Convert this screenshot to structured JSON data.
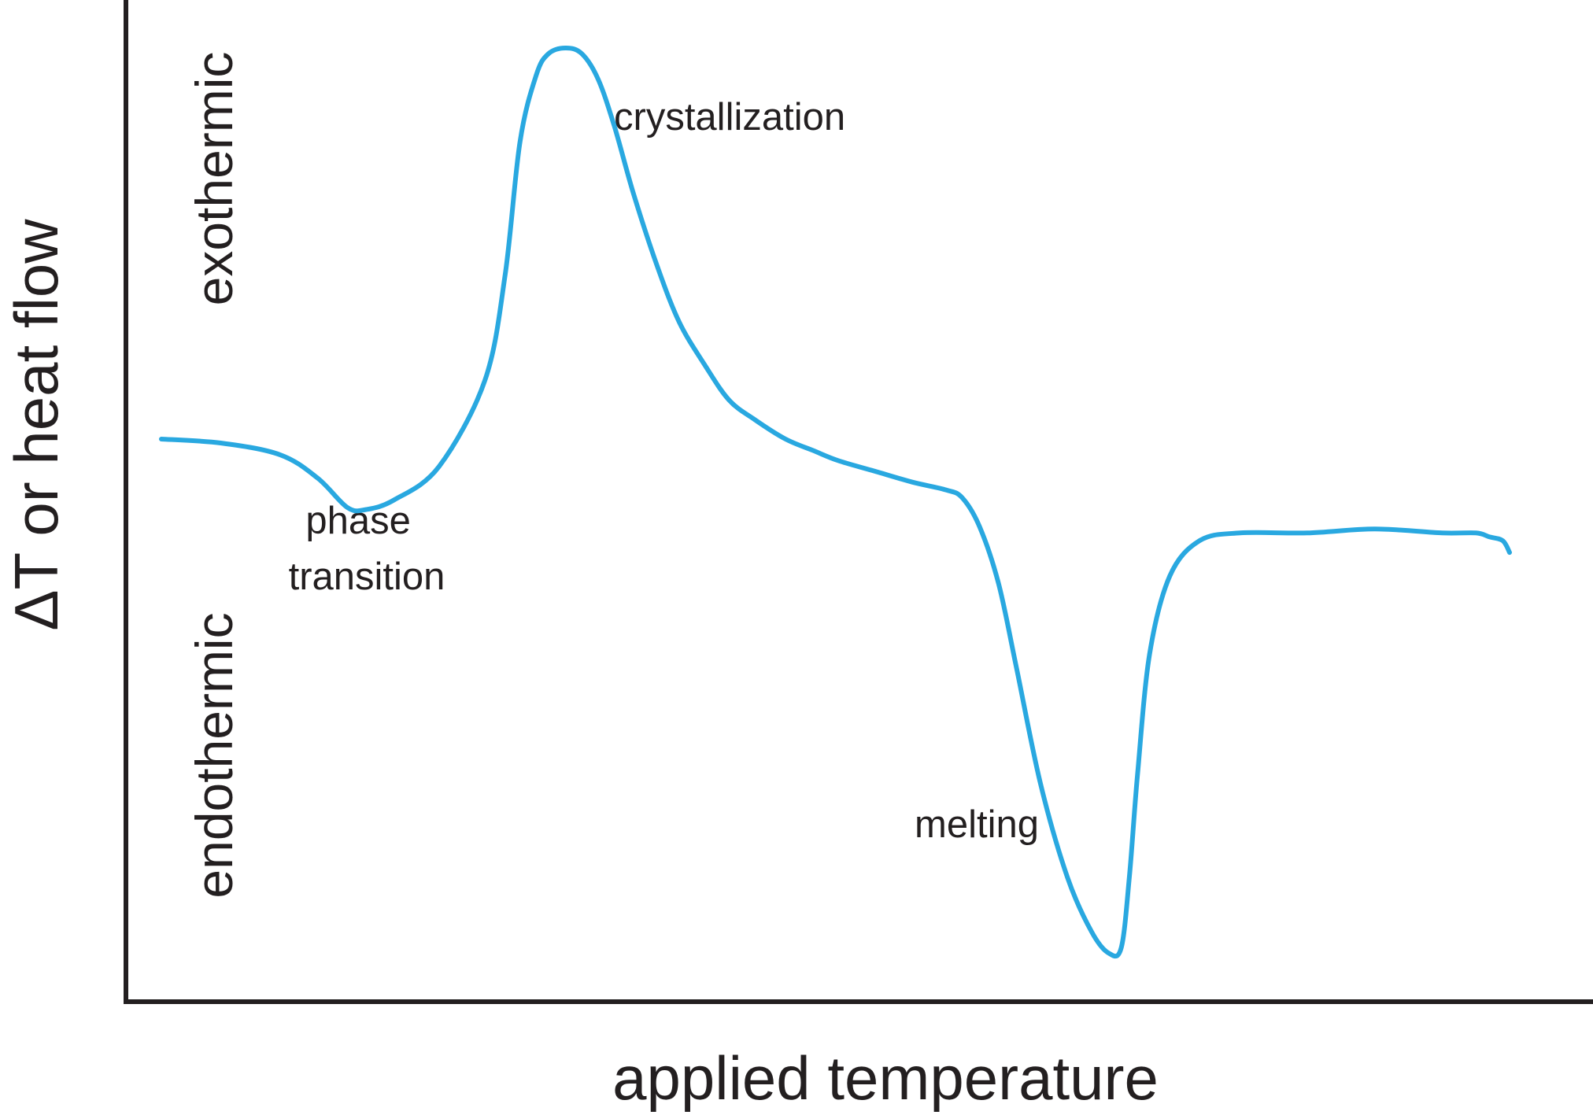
{
  "chart_data": {
    "type": "line",
    "xlabel": "applied temperature",
    "ylabel": "ΔT or heat flow",
    "region_labels": {
      "upper": "exothermic",
      "lower": "endothermic"
    },
    "annotations": [
      {
        "lines": [
          "phase",
          "transition"
        ]
      },
      {
        "lines": [
          "crystallization"
        ]
      },
      {
        "lines": [
          "melting"
        ]
      }
    ],
    "series": [
      {
        "color": "#29a8e0",
        "x": [
          0.0,
          0.044,
          0.088,
          0.116,
          0.138,
          0.152,
          0.173,
          0.206,
          0.24,
          0.255,
          0.266,
          0.278,
          0.287,
          0.3,
          0.312,
          0.324,
          0.336,
          0.35,
          0.367,
          0.384,
          0.403,
          0.421,
          0.44,
          0.463,
          0.484,
          0.502,
          0.527,
          0.557,
          0.582,
          0.594,
          0.607,
          0.621,
          0.634,
          0.652,
          0.672,
          0.69,
          0.703,
          0.712,
          0.718,
          0.724,
          0.733,
          0.748,
          0.77,
          0.8,
          0.85,
          0.9,
          0.95,
          0.975,
          0.985,
          0.995,
          1.0
        ],
        "y": [
          0.0,
          -0.01,
          -0.04,
          -0.1,
          -0.175,
          -0.18,
          -0.155,
          -0.07,
          0.15,
          0.42,
          0.76,
          0.93,
          0.985,
          1.0,
          0.985,
          0.92,
          0.8,
          0.63,
          0.45,
          0.3,
          0.19,
          0.1,
          0.05,
          0.0,
          -0.03,
          -0.055,
          -0.08,
          -0.11,
          -0.13,
          -0.15,
          -0.225,
          -0.37,
          -0.58,
          -0.88,
          -1.12,
          -1.26,
          -1.315,
          -1.3,
          -1.12,
          -0.86,
          -0.55,
          -0.35,
          -0.26,
          -0.24,
          -0.24,
          -0.23,
          -0.24,
          -0.24,
          -0.25,
          -0.26,
          -0.29
        ]
      }
    ]
  }
}
